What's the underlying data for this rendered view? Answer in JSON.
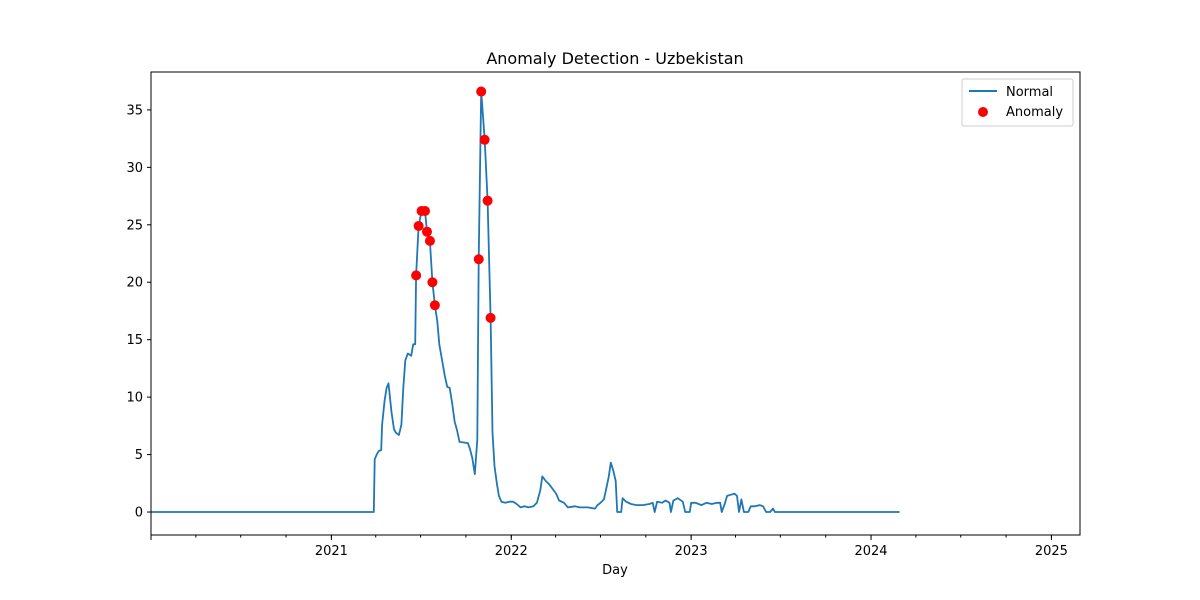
{
  "chart_data": {
    "type": "line",
    "title": "Anomaly Detection - Uzbekistan",
    "xlabel": "Day",
    "ylabel": "",
    "x_range": [
      "2020-01-01",
      "2025-02-28"
    ],
    "ylim": [
      -2,
      38.3
    ],
    "y_ticks": [
      0,
      5,
      10,
      15,
      20,
      25,
      30,
      35
    ],
    "x_ticks": [
      {
        "label": "2021",
        "date": "2021-01-01"
      },
      {
        "label": "2022",
        "date": "2022-01-01"
      },
      {
        "label": "2023",
        "date": "2023-01-01"
      },
      {
        "label": "2024",
        "date": "2024-01-01"
      },
      {
        "label": "2025",
        "date": "2025-01-01"
      }
    ],
    "grid": false,
    "legend_position": "top-right",
    "series": [
      {
        "name": "Normal",
        "color": "#1f77b4",
        "points": [
          [
            "2020-01-01",
            0
          ],
          [
            "2021-03-28",
            0
          ],
          [
            "2021-03-30",
            4.6
          ],
          [
            "2021-04-03",
            5.0
          ],
          [
            "2021-04-07",
            5.3
          ],
          [
            "2021-04-12",
            5.4
          ],
          [
            "2021-04-14",
            7.6
          ],
          [
            "2021-04-19",
            9.7
          ],
          [
            "2021-04-23",
            10.8
          ],
          [
            "2021-04-27",
            11.2
          ],
          [
            "2021-05-03",
            8.7
          ],
          [
            "2021-05-08",
            7.2
          ],
          [
            "2021-05-12",
            6.9
          ],
          [
            "2021-05-18",
            6.7
          ],
          [
            "2021-05-23",
            7.6
          ],
          [
            "2021-05-27",
            10.8
          ],
          [
            "2021-05-31",
            13.2
          ],
          [
            "2021-06-05",
            13.8
          ],
          [
            "2021-06-12",
            13.6
          ],
          [
            "2021-06-16",
            14.6
          ],
          [
            "2021-06-20",
            14.6
          ],
          [
            "2021-06-22",
            20.6
          ],
          [
            "2021-06-27",
            24.9
          ],
          [
            "2021-07-03",
            26.2
          ],
          [
            "2021-07-10",
            26.2
          ],
          [
            "2021-07-14",
            24.4
          ],
          [
            "2021-07-20",
            23.6
          ],
          [
            "2021-07-25",
            20.0
          ],
          [
            "2021-07-30",
            18.0
          ],
          [
            "2021-08-04",
            16.6
          ],
          [
            "2021-08-08",
            14.6
          ],
          [
            "2021-08-14",
            13.1
          ],
          [
            "2021-08-19",
            11.9
          ],
          [
            "2021-08-24",
            10.9
          ],
          [
            "2021-08-29",
            10.8
          ],
          [
            "2021-09-03",
            9.5
          ],
          [
            "2021-09-08",
            7.9
          ],
          [
            "2021-09-13",
            7.1
          ],
          [
            "2021-09-18",
            6.1
          ],
          [
            "2021-10-05",
            6.0
          ],
          [
            "2021-10-09",
            5.5
          ],
          [
            "2021-10-14",
            4.7
          ],
          [
            "2021-10-19",
            3.3
          ],
          [
            "2021-10-24",
            6.3
          ],
          [
            "2021-10-27",
            22.0
          ],
          [
            "2021-11-01",
            36.6
          ],
          [
            "2021-11-08",
            32.4
          ],
          [
            "2021-11-14",
            27.1
          ],
          [
            "2021-11-20",
            16.9
          ],
          [
            "2021-11-24",
            6.9
          ],
          [
            "2021-11-28",
            4.0
          ],
          [
            "2021-12-03",
            2.4
          ],
          [
            "2021-12-07",
            1.4
          ],
          [
            "2021-12-12",
            0.9
          ],
          [
            "2021-12-20",
            0.8
          ],
          [
            "2021-12-28",
            0.9
          ],
          [
            "2022-01-05",
            0.9
          ],
          [
            "2022-01-12",
            0.7
          ],
          [
            "2022-01-20",
            0.4
          ],
          [
            "2022-01-28",
            0.5
          ],
          [
            "2022-02-05",
            0.4
          ],
          [
            "2022-02-15",
            0.5
          ],
          [
            "2022-02-22",
            0.8
          ],
          [
            "2022-03-01",
            1.9
          ],
          [
            "2022-03-05",
            3.1
          ],
          [
            "2022-03-12",
            2.7
          ],
          [
            "2022-03-19",
            2.4
          ],
          [
            "2022-03-26",
            2.0
          ],
          [
            "2022-04-02",
            1.6
          ],
          [
            "2022-04-08",
            1.0
          ],
          [
            "2022-04-18",
            0.8
          ],
          [
            "2022-04-26",
            0.4
          ],
          [
            "2022-05-10",
            0.5
          ],
          [
            "2022-05-20",
            0.4
          ],
          [
            "2022-06-05",
            0.4
          ],
          [
            "2022-06-20",
            0.3
          ],
          [
            "2022-06-25",
            0.6
          ],
          [
            "2022-07-01",
            0.8
          ],
          [
            "2022-07-08",
            1.1
          ],
          [
            "2022-07-13",
            2.1
          ],
          [
            "2022-07-18",
            3.1
          ],
          [
            "2022-07-22",
            4.3
          ],
          [
            "2022-07-27",
            3.6
          ],
          [
            "2022-08-01",
            2.7
          ],
          [
            "2022-08-04",
            0.0
          ],
          [
            "2022-08-12",
            0.0
          ],
          [
            "2022-08-15",
            1.2
          ],
          [
            "2022-08-22",
            0.9
          ],
          [
            "2022-09-01",
            0.7
          ],
          [
            "2022-09-12",
            0.6
          ],
          [
            "2022-09-25",
            0.6
          ],
          [
            "2022-10-08",
            0.7
          ],
          [
            "2022-10-15",
            0.8
          ],
          [
            "2022-10-19",
            0.0
          ],
          [
            "2022-10-24",
            0.9
          ],
          [
            "2022-11-03",
            0.8
          ],
          [
            "2022-11-10",
            1.0
          ],
          [
            "2022-11-18",
            0.8
          ],
          [
            "2022-11-21",
            0.0
          ],
          [
            "2022-11-26",
            1.0
          ],
          [
            "2022-12-05",
            1.2
          ],
          [
            "2022-12-15",
            0.9
          ],
          [
            "2022-12-20",
            0.0
          ],
          [
            "2022-12-29",
            0.0
          ],
          [
            "2023-01-01",
            0.8
          ],
          [
            "2023-01-10",
            0.8
          ],
          [
            "2023-01-22",
            0.6
          ],
          [
            "2023-02-01",
            0.8
          ],
          [
            "2023-02-12",
            0.7
          ],
          [
            "2023-02-22",
            0.8
          ],
          [
            "2023-03-01",
            0.8
          ],
          [
            "2023-03-04",
            0.0
          ],
          [
            "2023-03-10",
            0.7
          ],
          [
            "2023-03-15",
            1.4
          ],
          [
            "2023-03-22",
            1.5
          ],
          [
            "2023-03-30",
            1.6
          ],
          [
            "2023-04-04",
            1.4
          ],
          [
            "2023-04-08",
            0.0
          ],
          [
            "2023-04-13",
            1.1
          ],
          [
            "2023-04-18",
            0.0
          ],
          [
            "2023-04-27",
            0.0
          ],
          [
            "2023-05-02",
            0.5
          ],
          [
            "2023-05-10",
            0.5
          ],
          [
            "2023-05-20",
            0.6
          ],
          [
            "2023-05-27",
            0.5
          ],
          [
            "2023-06-02",
            0.0
          ],
          [
            "2023-06-10",
            0.0
          ],
          [
            "2023-06-16",
            0.3
          ],
          [
            "2023-06-20",
            0.0
          ],
          [
            "2024-02-28",
            0.0
          ]
        ]
      },
      {
        "name": "Anomaly",
        "color": "#ff0000",
        "points": [
          [
            "2021-06-22",
            20.6
          ],
          [
            "2021-06-27",
            24.9
          ],
          [
            "2021-07-03",
            26.2
          ],
          [
            "2021-07-10",
            26.2
          ],
          [
            "2021-07-14",
            24.4
          ],
          [
            "2021-07-20",
            23.6
          ],
          [
            "2021-07-25",
            20.0
          ],
          [
            "2021-07-30",
            18.0
          ],
          [
            "2021-10-27",
            22.0
          ],
          [
            "2021-11-01",
            36.6
          ],
          [
            "2021-11-08",
            32.4
          ],
          [
            "2021-11-14",
            27.1
          ],
          [
            "2021-11-20",
            16.9
          ]
        ]
      }
    ]
  }
}
